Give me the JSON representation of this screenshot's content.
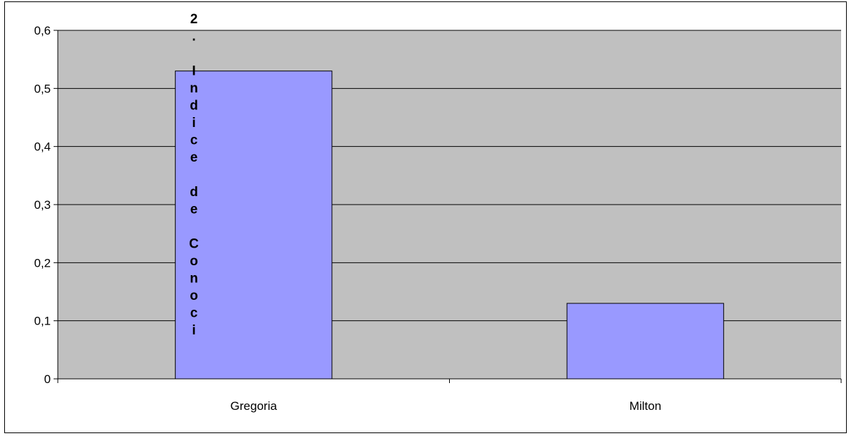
{
  "chart_data": {
    "type": "bar",
    "title": "2. Indice de Conoci",
    "categories": [
      "Gregoria",
      "Milton"
    ],
    "values": [
      0.53,
      0.13
    ],
    "ylim": [
      0,
      0.6
    ],
    "yticks": [
      0,
      0.1,
      0.2,
      0.3,
      0.4,
      0.5,
      0.6
    ],
    "ytick_labels": [
      "0",
      "0,1",
      "0,2",
      "0,3",
      "0,4",
      "0,5",
      "0,6"
    ],
    "grid": true,
    "legend": "none",
    "colors": {
      "plot_background": "#c0c0c0",
      "bar_fill": "#9999ff",
      "bar_stroke": "#000000",
      "gridline": "#000000"
    }
  }
}
